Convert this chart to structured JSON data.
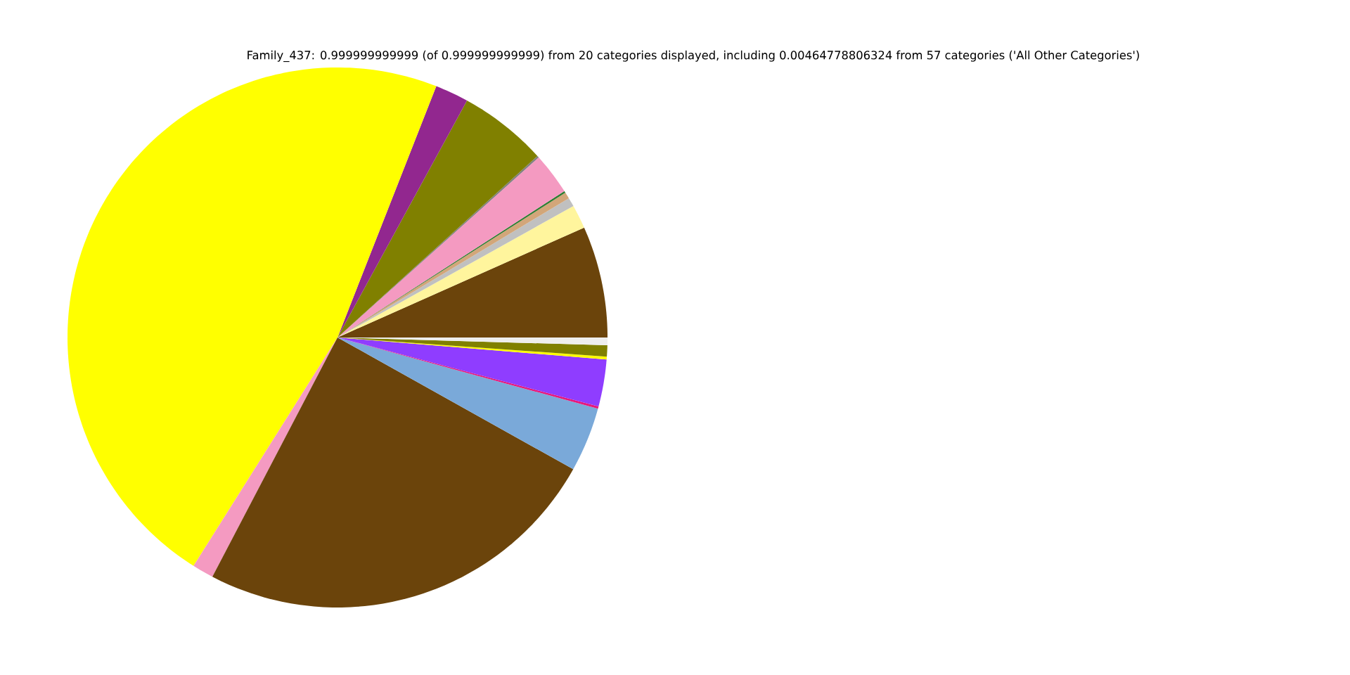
{
  "chart_data": {
    "type": "pie",
    "title": "Family_437: 0.999999999999 (of 0.999999999999) from 20 categories displayed, including 0.00464778806324 from 57 categories ('All Other Categories')",
    "categories": [
      null,
      null,
      null,
      null,
      null,
      null,
      null,
      null,
      null,
      null,
      null,
      null,
      null,
      null,
      null,
      null,
      null,
      null
    ],
    "values": [
      6.67,
      1.42,
      0.53,
      0.39,
      0.11,
      2.5,
      0.11,
      5.31,
      2.0,
      47.01,
      1.28,
      24.56,
      3.86,
      0.14,
      2.81,
      0.17,
      0.67,
      0.46
    ],
    "colors": [
      "#6b440b",
      "#fff59d",
      "#c0c0c0",
      "#d2a679",
      "#2e7d32",
      "#f49ac1",
      "#808080",
      "#808000",
      "#92278f",
      "#ffff00",
      "#f49ac1",
      "#6b440b",
      "#7aa9d9",
      "#e6197a",
      "#8f3dff",
      "#ffff00",
      "#808000",
      "#eeeeee"
    ]
  }
}
